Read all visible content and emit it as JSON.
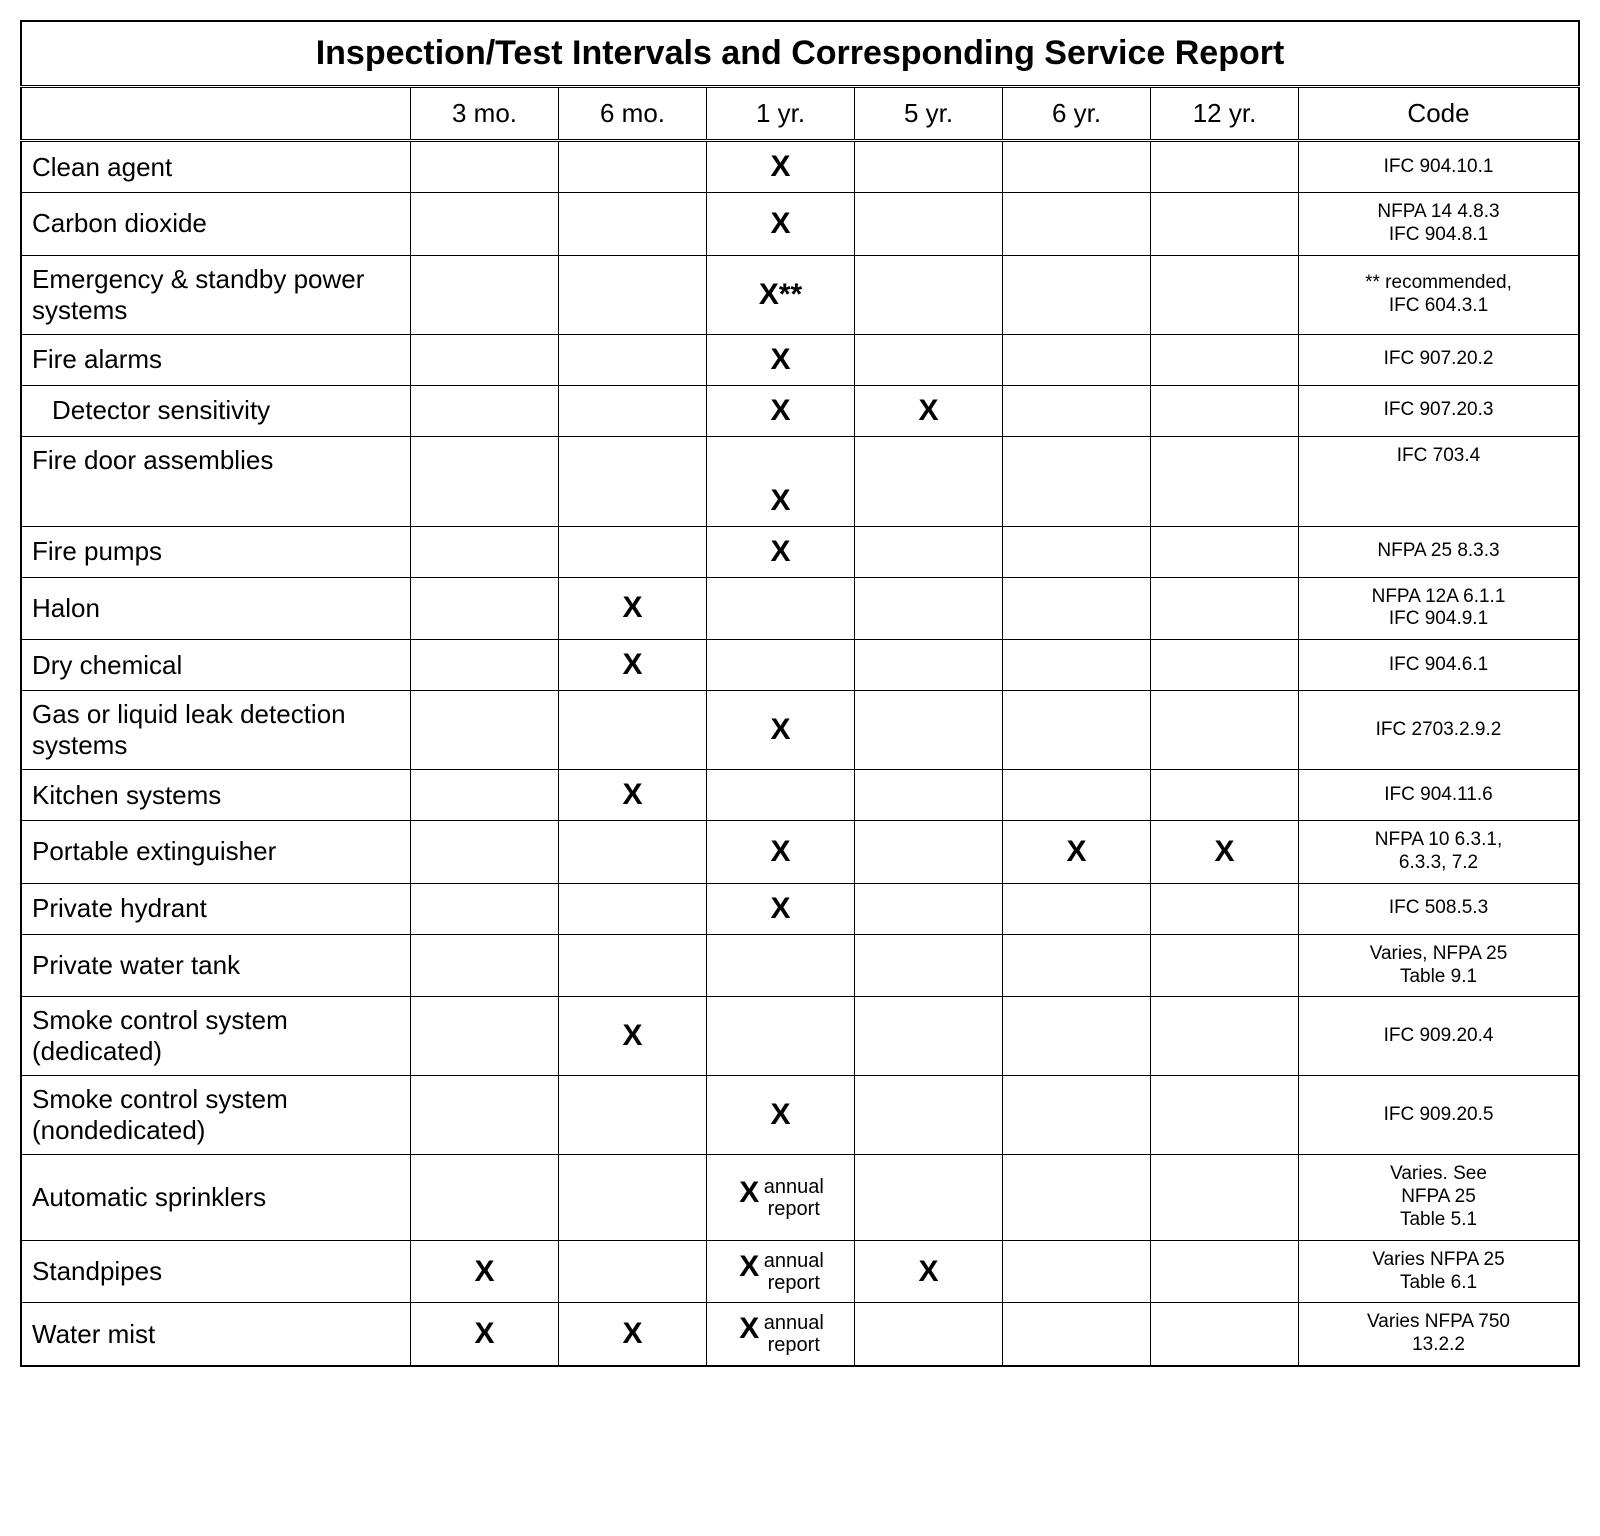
{
  "title": "Inspection/Test Intervals and Corresponding Service Report",
  "headers": {
    "blank": "",
    "col1": "3 mo.",
    "col2": "6 mo.",
    "col3": "1 yr.",
    "col4": "5 yr.",
    "col5": "6 yr.",
    "col6": "12 yr.",
    "col7": "Code"
  },
  "mark": "X",
  "mark_star": "X**",
  "annual_label": "annual report",
  "rows": [
    {
      "label": "Clean agent",
      "indented": false,
      "c1": "",
      "c2": "",
      "c3": "X",
      "c4": "",
      "c5": "",
      "c6": "",
      "code": "IFC 904.10.1"
    },
    {
      "label": "Carbon dioxide",
      "indented": false,
      "c1": "",
      "c2": "",
      "c3": "X",
      "c4": "",
      "c5": "",
      "c6": "",
      "code": "NFPA 14 4.8.3\nIFC 904.8.1"
    },
    {
      "label": "Emergency & standby power systems",
      "indented": false,
      "c1": "",
      "c2": "",
      "c3": "X**",
      "c4": "",
      "c5": "",
      "c6": "",
      "code": "** recommended,\nIFC 604.3.1"
    },
    {
      "label": "Fire alarms",
      "indented": false,
      "c1": "",
      "c2": "",
      "c3": "X",
      "c4": "",
      "c5": "",
      "c6": "",
      "code": "IFC 907.20.2"
    },
    {
      "label": "Detector sensitivity",
      "indented": true,
      "c1": "",
      "c2": "",
      "c3": "X",
      "c4": "X",
      "c5": "",
      "c6": "",
      "code": "IFC 907.20.3"
    },
    {
      "label": "Fire door assemblies",
      "indented": false,
      "tall": true,
      "c1": "",
      "c2": "",
      "c3": "X",
      "c4": "",
      "c5": "",
      "c6": "",
      "code": "IFC 703.4"
    },
    {
      "label": "Fire pumps",
      "indented": false,
      "c1": "",
      "c2": "",
      "c3": "X",
      "c4": "",
      "c5": "",
      "c6": "",
      "code": "NFPA 25 8.3.3"
    },
    {
      "label": "Halon",
      "indented": false,
      "c1": "",
      "c2": "X",
      "c3": "",
      "c4": "",
      "c5": "",
      "c6": "",
      "code": "NFPA 12A 6.1.1\nIFC 904.9.1"
    },
    {
      "label": "Dry chemical",
      "indented": false,
      "c1": "",
      "c2": "X",
      "c3": "",
      "c4": "",
      "c5": "",
      "c6": "",
      "code": "IFC 904.6.1"
    },
    {
      "label": "Gas or liquid leak detection systems",
      "indented": false,
      "c1": "",
      "c2": "",
      "c3": "X",
      "c4": "",
      "c5": "",
      "c6": "",
      "code": "IFC 2703.2.9.2"
    },
    {
      "label": "Kitchen systems",
      "indented": false,
      "c1": "",
      "c2": "X",
      "c3": "",
      "c4": "",
      "c5": "",
      "c6": "",
      "code": "IFC 904.11.6"
    },
    {
      "label": "Portable extinguisher",
      "indented": false,
      "c1": "",
      "c2": "",
      "c3": "X",
      "c4": "",
      "c5": "X",
      "c6": "X",
      "code": "NFPA 10 6.3.1,\n6.3.3, 7.2"
    },
    {
      "label": "Private hydrant",
      "indented": false,
      "c1": "",
      "c2": "",
      "c3": "X",
      "c4": "",
      "c5": "",
      "c6": "",
      "code": "IFC 508.5.3"
    },
    {
      "label": "Private water tank",
      "indented": false,
      "c1": "",
      "c2": "",
      "c3": "",
      "c4": "",
      "c5": "",
      "c6": "",
      "code": "Varies, NFPA 25\nTable 9.1"
    },
    {
      "label": "Smoke control system (dedicated)",
      "indented": false,
      "c1": "",
      "c2": "X",
      "c3": "",
      "c4": "",
      "c5": "",
      "c6": "",
      "code": "IFC 909.20.4"
    },
    {
      "label": "Smoke control system (nondedicated)",
      "indented": false,
      "c1": "",
      "c2": "",
      "c3": "X",
      "c4": "",
      "c5": "",
      "c6": "",
      "code": "IFC 909.20.5"
    },
    {
      "label": "Automatic sprinklers",
      "indented": false,
      "c1": "",
      "c2": "",
      "c3": "X annual",
      "c4": "",
      "c5": "",
      "c6": "",
      "code": "Varies. See\nNFPA 25\nTable 5.1"
    },
    {
      "label": "Standpipes",
      "indented": false,
      "c1": "X",
      "c2": "",
      "c3": "X annual",
      "c4": "X",
      "c5": "",
      "c6": "",
      "code": "Varies NFPA 25\nTable 6.1"
    },
    {
      "label": "Water mist",
      "indented": false,
      "c1": "X",
      "c2": "X",
      "c3": "X annual",
      "c4": "",
      "c5": "",
      "c6": "",
      "code": "Varies NFPA 750\n13.2.2"
    }
  ]
}
